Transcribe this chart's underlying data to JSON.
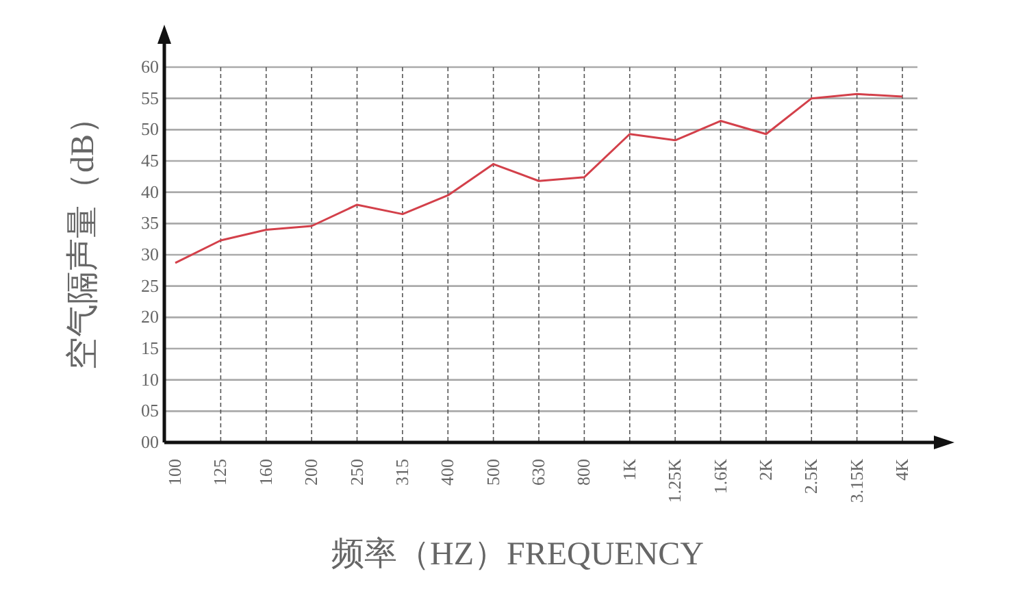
{
  "chart_data": {
    "type": "line",
    "xlabel": "频率（HZ）FREQUENCY",
    "ylabel": "空气隔声量（dB）",
    "categories": [
      "100",
      "125",
      "160",
      "200",
      "250",
      "315",
      "400",
      "500",
      "630",
      "800",
      "1K",
      "1.25K",
      "1.6K",
      "2K",
      "2.5K",
      "3.15K",
      "4K"
    ],
    "series": [
      {
        "color": "#d3404a",
        "values": [
          28.7,
          32.3,
          34,
          34.6,
          38,
          36.5,
          39.5,
          44.5,
          41.8,
          42.4,
          49.3,
          48.3,
          51.4,
          49.3,
          55,
          55.7,
          55.3
        ]
      }
    ],
    "ylim": [
      0,
      60
    ],
    "yticks": [
      {
        "value": 0,
        "label": "00"
      },
      {
        "value": 5,
        "label": "05"
      },
      10,
      15,
      20,
      25,
      30,
      35,
      40,
      45,
      50,
      55,
      60
    ],
    "grid": true,
    "marker": "none",
    "line_style": "solid"
  }
}
